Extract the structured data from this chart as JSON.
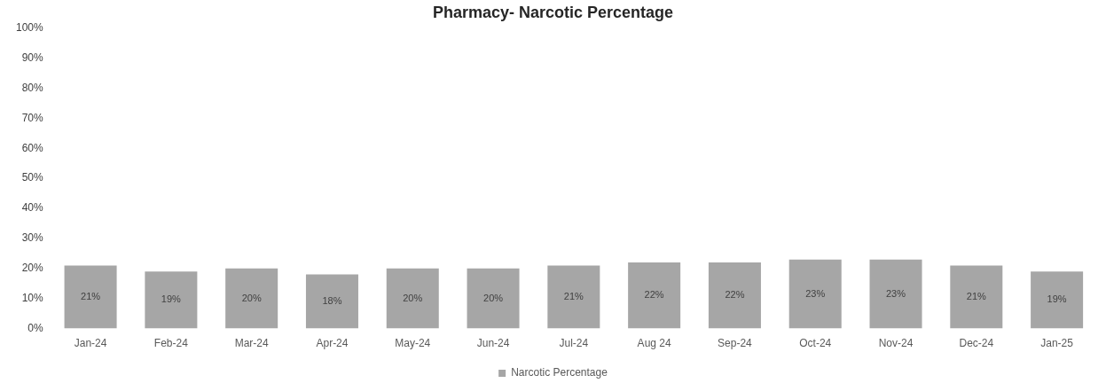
{
  "chart_data": {
    "type": "bar",
    "title": "Pharmacy- Narcotic Percentage",
    "categories": [
      "Jan-24",
      "Feb-24",
      "Mar-24",
      "Apr-24",
      "May-24",
      "Jun-24",
      "Jul-24",
      "Aug 24",
      "Sep-24",
      "Oct-24",
      "Nov-24",
      "Dec-24",
      "Jan-25"
    ],
    "series": [
      {
        "name": "Narcotic Percentage",
        "color": "#a6a6a6",
        "values": [
          21,
          19,
          20,
          18,
          20,
          20,
          21,
          22,
          22,
          23,
          23,
          21,
          19
        ],
        "value_labels": [
          "21%",
          "19%",
          "20%",
          "18%",
          "20%",
          "20%",
          "21%",
          "22%",
          "22%",
          "23%",
          "23%",
          "21%",
          "19%"
        ]
      }
    ],
    "ylim": [
      0,
      100
    ],
    "yticks": [
      {
        "value": 0,
        "label": "0%"
      },
      {
        "value": 10,
        "label": "10%"
      },
      {
        "value": 20,
        "label": "20%"
      },
      {
        "value": 30,
        "label": "30%"
      },
      {
        "value": 40,
        "label": "40%"
      },
      {
        "value": 50,
        "label": "50%"
      },
      {
        "value": 60,
        "label": "60%"
      },
      {
        "value": 70,
        "label": "70%"
      },
      {
        "value": 80,
        "label": "80%"
      },
      {
        "value": 90,
        "label": "90%"
      },
      {
        "value": 100,
        "label": "100%"
      }
    ],
    "grid": false,
    "legend": "bottom"
  }
}
